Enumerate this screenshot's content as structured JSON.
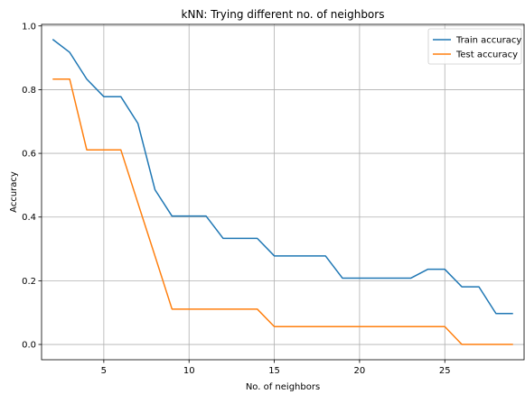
{
  "chart_data": {
    "type": "line",
    "title": "kNN: Trying different no. of neighbors",
    "xlabel": "No. of neighbors",
    "ylabel": "Accuracy",
    "xlim": [
      1.35,
      29.65
    ],
    "ylim": [
      -0.048,
      1.005
    ],
    "xticks": [
      5,
      10,
      15,
      20,
      25,
      30
    ],
    "yticks": [
      0.0,
      0.2,
      0.4,
      0.6,
      0.8,
      1.0
    ],
    "ytick_labels": [
      "0.0",
      "0.2",
      "0.4",
      "0.6",
      "0.8",
      "1.0"
    ],
    "grid": true,
    "legend_position": "top-right",
    "x": [
      2,
      3,
      4,
      5,
      6,
      7,
      8,
      9,
      10,
      11,
      12,
      13,
      14,
      15,
      16,
      17,
      18,
      19,
      20,
      21,
      22,
      23,
      24,
      25,
      26,
      27,
      28,
      29
    ],
    "series": [
      {
        "name": "Train accuracy",
        "color": "#1f77b4",
        "values": [
          0.958,
          0.917,
          0.833,
          0.778,
          0.778,
          0.694,
          0.486,
          0.403,
          0.403,
          0.403,
          0.333,
          0.333,
          0.333,
          0.278,
          0.278,
          0.278,
          0.278,
          0.208,
          0.208,
          0.208,
          0.208,
          0.208,
          0.236,
          0.236,
          0.181,
          0.181,
          0.097,
          0.097
        ]
      },
      {
        "name": "Test accuracy",
        "color": "#ff7f0e",
        "values": [
          0.833,
          0.833,
          0.611,
          0.611,
          0.611,
          0.444,
          0.278,
          0.111,
          0.111,
          0.111,
          0.111,
          0.111,
          0.111,
          0.056,
          0.056,
          0.056,
          0.056,
          0.056,
          0.056,
          0.056,
          0.056,
          0.056,
          0.056,
          0.056,
          0.0,
          0.0,
          0.0,
          0.0
        ]
      }
    ]
  }
}
